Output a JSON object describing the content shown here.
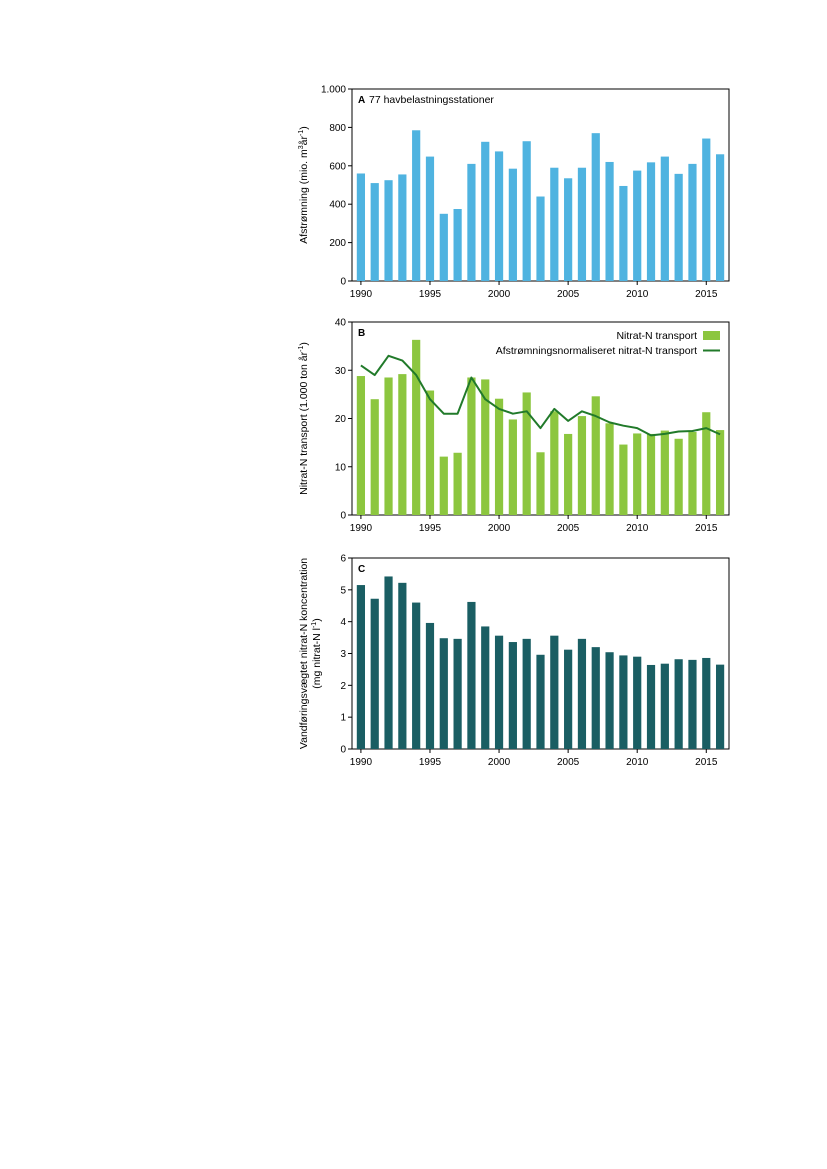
{
  "chart_data": [
    {
      "type": "bar",
      "panel": "A",
      "title": "77 havbelastningsstationer",
      "ylabel_main": "Afstrømning (mio. m",
      "ylabel_sup1": "3",
      "ylabel_mid": "år",
      "ylabel_sup2": "-1",
      "ylabel_end": ")",
      "ylim": [
        0,
        1000
      ],
      "yticks": [
        0,
        200,
        400,
        600,
        800,
        1000
      ],
      "ytick_labels": [
        "0",
        "200",
        "400",
        "600",
        "800",
        "1.000"
      ],
      "xticks": [
        1990,
        1995,
        2000,
        2005,
        2010,
        2015
      ],
      "xtick_labels": [
        "1990",
        "1995",
        "2000",
        "2005",
        "2010",
        "2015"
      ],
      "color": "#4fb3e0",
      "x": [
        1990,
        1991,
        1992,
        1993,
        1994,
        1995,
        1996,
        1997,
        1998,
        1999,
        2000,
        2001,
        2002,
        2003,
        2004,
        2005,
        2006,
        2007,
        2008,
        2009,
        2010,
        2011,
        2012,
        2013,
        2014,
        2015,
        2016
      ],
      "values": [
        560,
        510,
        525,
        555,
        785,
        648,
        350,
        375,
        610,
        725,
        675,
        585,
        728,
        440,
        590,
        535,
        590,
        770,
        620,
        495,
        575,
        618,
        648,
        558,
        610,
        742,
        660
      ]
    },
    {
      "type": "bar",
      "panel": "B",
      "ylabel_main": "Nitrat-N transport (1.000 ton år",
      "ylabel_sup": "-1",
      "ylabel_end": ")",
      "ylim": [
        0,
        40
      ],
      "yticks": [
        0,
        10,
        20,
        30,
        40
      ],
      "ytick_labels": [
        "0",
        "10",
        "20",
        "30",
        "40"
      ],
      "xticks": [
        1990,
        1995,
        2000,
        2005,
        2010,
        2015
      ],
      "xtick_labels": [
        "1990",
        "1995",
        "2000",
        "2005",
        "2010",
        "2015"
      ],
      "legend_position": "top-right",
      "x": [
        1990,
        1991,
        1992,
        1993,
        1994,
        1995,
        1996,
        1997,
        1998,
        1999,
        2000,
        2001,
        2002,
        2003,
        2004,
        2005,
        2006,
        2007,
        2008,
        2009,
        2010,
        2011,
        2012,
        2013,
        2014,
        2015,
        2016
      ],
      "series": [
        {
          "name": "Nitrat-N transport",
          "kind": "bar",
          "color": "#8cc63f",
          "values": [
            28.8,
            24.0,
            28.5,
            29.2,
            36.3,
            25.8,
            12.1,
            12.9,
            28.5,
            28.1,
            24.1,
            19.8,
            25.4,
            13.0,
            21.5,
            16.8,
            20.5,
            24.6,
            19.0,
            14.6,
            16.9,
            16.8,
            17.5,
            15.8,
            17.2,
            21.3,
            17.6
          ]
        },
        {
          "name": "Afstrømningsnormaliseret nitrat-N transport",
          "kind": "line",
          "color": "#217a2a",
          "values": [
            31.0,
            29.0,
            33.0,
            32.0,
            29.0,
            24.0,
            21.0,
            21.0,
            28.5,
            24.0,
            22.0,
            21.0,
            21.5,
            18.0,
            22.0,
            19.5,
            21.5,
            20.5,
            19.2,
            18.5,
            18.0,
            16.5,
            16.8,
            17.3,
            17.4,
            18.0,
            16.7
          ]
        }
      ]
    },
    {
      "type": "bar",
      "panel": "C",
      "ylabel_line1": "Vandføringsvægtet nitrat-N koncentration",
      "ylabel_line2_main": "(mg nitrat-N l",
      "ylabel_line2_sup": "-1",
      "ylabel_line2_end": ")",
      "ylim": [
        0,
        6
      ],
      "yticks": [
        0,
        1,
        2,
        3,
        4,
        5,
        6
      ],
      "ytick_labels": [
        "0",
        "1",
        "2",
        "3",
        "4",
        "5",
        "6"
      ],
      "xticks": [
        1990,
        1995,
        2000,
        2005,
        2010,
        2015
      ],
      "xtick_labels": [
        "1990",
        "1995",
        "2000",
        "2005",
        "2010",
        "2015"
      ],
      "color": "#1a5e63",
      "x": [
        1990,
        1991,
        1992,
        1993,
        1994,
        1995,
        1996,
        1997,
        1998,
        1999,
        2000,
        2001,
        2002,
        2003,
        2004,
        2005,
        2006,
        2007,
        2008,
        2009,
        2010,
        2011,
        2012,
        2013,
        2014,
        2015,
        2016
      ],
      "values": [
        5.15,
        4.72,
        5.42,
        5.22,
        4.6,
        3.96,
        3.48,
        3.46,
        4.62,
        3.85,
        3.56,
        3.36,
        3.46,
        2.96,
        3.56,
        3.12,
        3.46,
        3.2,
        3.04,
        2.94,
        2.9,
        2.64,
        2.68,
        2.82,
        2.8,
        2.86,
        2.65
      ]
    }
  ]
}
